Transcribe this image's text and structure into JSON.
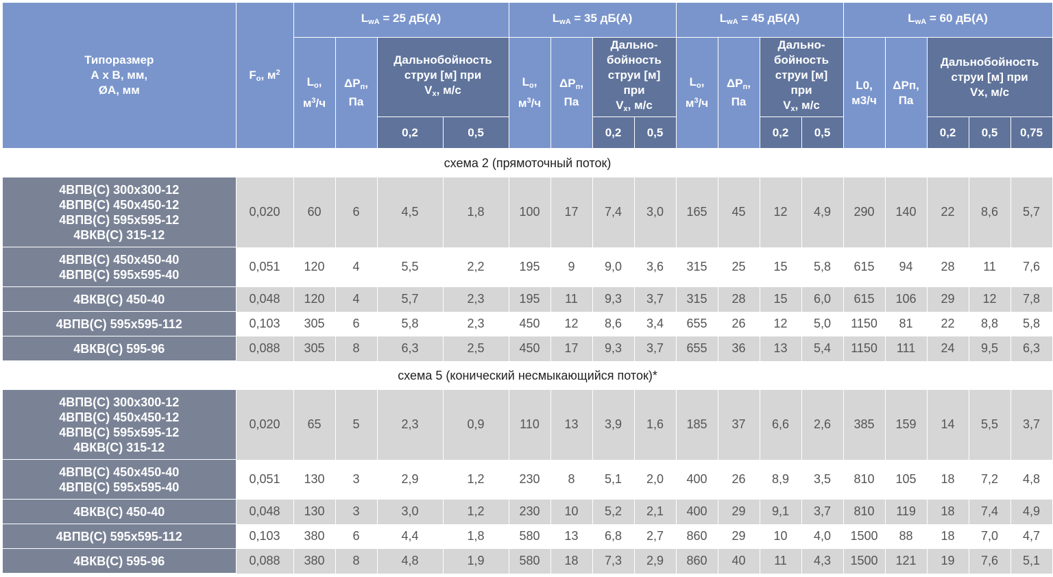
{
  "header": {
    "type_label": [
      "Типоразмер",
      "А х В, мм,",
      "ØА, мм"
    ],
    "fo": {
      "main": "F",
      "sub": "o",
      "tail": ", м",
      "sup": "2"
    },
    "groups": [
      {
        "prefix": "L",
        "sub": "wA",
        "text": " = 25 дБ(А)"
      },
      {
        "prefix": "L",
        "sub": "wA",
        "text": " = 35 дБ(А)"
      },
      {
        "prefix": "L",
        "sub": "wA",
        "text": " = 45 дБ(А)"
      },
      {
        "prefix": "L",
        "sub": "wA",
        "text": " = 60 дБ(А)"
      }
    ],
    "lo": {
      "main": "L",
      "sub": "o",
      "tail": ",",
      "unit": "м",
      "sup": "3",
      "unit_tail": "/ч"
    },
    "dp": {
      "main": "ΔP",
      "sub": "п",
      "tail": ",",
      "unit": "Па"
    },
    "lo_alt": [
      "L0,",
      "м3/ч"
    ],
    "dp_alt": [
      "ΔPп,",
      "Па"
    ],
    "range_wide": [
      "Дальнобойность",
      "струи [м] при"
    ],
    "range_wide_vx": {
      "main": "V",
      "sub": "x",
      "tail": ", м/с"
    },
    "range_narrow": [
      "Дально-",
      "бойность",
      "струи [м]",
      "при"
    ],
    "range_narrow_vx": {
      "main": "V",
      "sub": "x",
      "tail": ", м/с"
    },
    "range_last": [
      "Дальнобойность",
      "струи [м] при",
      "Vx, м/с"
    ],
    "speeds": [
      "0,2",
      "0,5",
      "0,75"
    ]
  },
  "sections": [
    {
      "title": "схема 2 (прямоточный поток)",
      "rows": [
        {
          "models": [
            "4ВПВ(С) 300х300-12",
            "4ВПВ(С) 450х450-12",
            "4ВПВ(С) 595х595-12",
            "4ВКВ(С) 315-12"
          ],
          "values": [
            "0,020",
            "60",
            "6",
            "4,5",
            "1,8",
            "100",
            "17",
            "7,4",
            "3,0",
            "165",
            "45",
            "12",
            "4,9",
            "290",
            "140",
            "22",
            "8,6",
            "5,7"
          ]
        },
        {
          "models": [
            "4ВПВ(С) 450х450-40",
            "4ВПВ(С) 595х595-40"
          ],
          "values": [
            "0,051",
            "120",
            "4",
            "5,5",
            "2,2",
            "195",
            "9",
            "9,0",
            "3,6",
            "315",
            "25",
            "15",
            "5,8",
            "615",
            "94",
            "28",
            "11",
            "7,6"
          ]
        },
        {
          "models": [
            "4ВКВ(С) 450-40"
          ],
          "values": [
            "0,048",
            "120",
            "4",
            "5,7",
            "2,3",
            "195",
            "11",
            "9,3",
            "3,7",
            "315",
            "28",
            "15",
            "6,0",
            "615",
            "106",
            "29",
            "12",
            "7,8"
          ]
        },
        {
          "models": [
            "4ВПВ(С) 595х595-112"
          ],
          "values": [
            "0,103",
            "305",
            "6",
            "5,8",
            "2,3",
            "450",
            "12",
            "8,6",
            "3,4",
            "655",
            "26",
            "12",
            "5,0",
            "1150",
            "81",
            "22",
            "8,8",
            "5,8"
          ]
        },
        {
          "models": [
            "4ВКВ(С) 595-96"
          ],
          "values": [
            "0,088",
            "305",
            "8",
            "6,3",
            "2,5",
            "450",
            "17",
            "9,3",
            "3,7",
            "655",
            "36",
            "13",
            "5,4",
            "1150",
            "111",
            "24",
            "9,5",
            "6,3"
          ]
        }
      ]
    },
    {
      "title": "схема 5 (конический несмыкающийся поток)*",
      "rows": [
        {
          "models": [
            "4ВПВ(С) 300х300-12",
            "4ВПВ(С) 450х450-12",
            "4ВПВ(С) 595х595-12",
            "4ВКВ(С) 315-12"
          ],
          "values": [
            "0,020",
            "65",
            "5",
            "2,3",
            "0,9",
            "110",
            "13",
            "3,9",
            "1,6",
            "185",
            "37",
            "6,6",
            "2,6",
            "385",
            "159",
            "14",
            "5,5",
            "3,7"
          ]
        },
        {
          "models": [
            "4ВПВ(С) 450х450-40",
            "4ВПВ(С) 595х595-40"
          ],
          "values": [
            "0,051",
            "130",
            "3",
            "2,9",
            "1,2",
            "230",
            "8",
            "5,1",
            "2,0",
            "400",
            "26",
            "8,9",
            "3,5",
            "810",
            "105",
            "18",
            "7,2",
            "4,8"
          ]
        },
        {
          "models": [
            "4ВКВ(С) 450-40"
          ],
          "values": [
            "0,048",
            "130",
            "3",
            "3,0",
            "1,2",
            "230",
            "10",
            "5,2",
            "2,1",
            "400",
            "29",
            "9,1",
            "3,7",
            "810",
            "119",
            "18",
            "7,4",
            "4,9"
          ]
        },
        {
          "models": [
            "4ВПВ(С) 595х595-112"
          ],
          "values": [
            "0,103",
            "380",
            "6",
            "4,4",
            "1,8",
            "580",
            "13",
            "6,8",
            "2,7",
            "860",
            "29",
            "10",
            "4,0",
            "1500",
            "88",
            "18",
            "7,0",
            "4,7"
          ]
        },
        {
          "models": [
            "4ВКВ(С) 595-96"
          ],
          "values": [
            "0,088",
            "380",
            "8",
            "4,8",
            "1,9",
            "580",
            "18",
            "7,3",
            "2,9",
            "860",
            "40",
            "11",
            "4,3",
            "1500",
            "121",
            "19",
            "7,6",
            "5,1"
          ]
        }
      ]
    }
  ]
}
